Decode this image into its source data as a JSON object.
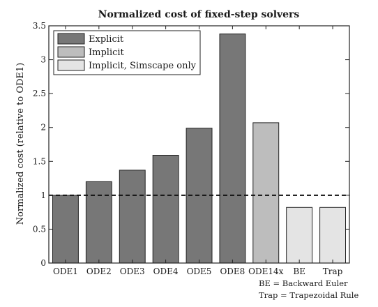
{
  "chart_data": {
    "type": "bar",
    "title": "Normalized cost of fixed-step solvers",
    "xlabel": "",
    "ylabel": "Normalized cost (relative to ODE1)",
    "ylim": [
      0,
      3.5
    ],
    "yticks": [
      0,
      0.5,
      1,
      1.5,
      2,
      2.5,
      3,
      3.5
    ],
    "ytick_labels": [
      "0",
      "0.5",
      "1",
      "1.5",
      "2",
      "2.5",
      "3",
      "3.5"
    ],
    "categories": [
      "ODE1",
      "ODE2",
      "ODE3",
      "ODE4",
      "ODE5",
      "ODE8",
      "ODE14x",
      "BE",
      "Trap"
    ],
    "values": [
      1.0,
      1.2,
      1.37,
      1.59,
      1.99,
      3.38,
      2.07,
      0.82,
      0.82
    ],
    "groups": [
      "Explicit",
      "Explicit",
      "Explicit",
      "Explicit",
      "Explicit",
      "Explicit",
      "Implicit",
      "Implicit, Simscape only",
      "Implicit, Simscape only"
    ],
    "legend": [
      {
        "label": "Explicit",
        "color": "#777777"
      },
      {
        "label": "Implicit",
        "color": "#bdbdbd"
      },
      {
        "label": "Implicit, Simscape only",
        "color": "#e4e4e4"
      }
    ],
    "legend_position": "top-left",
    "reference_line": {
      "y": 1,
      "style": "dashed"
    },
    "grid": false,
    "notes": [
      "BE = Backward Euler",
      "Trap = Trapezoidal Rule"
    ]
  }
}
